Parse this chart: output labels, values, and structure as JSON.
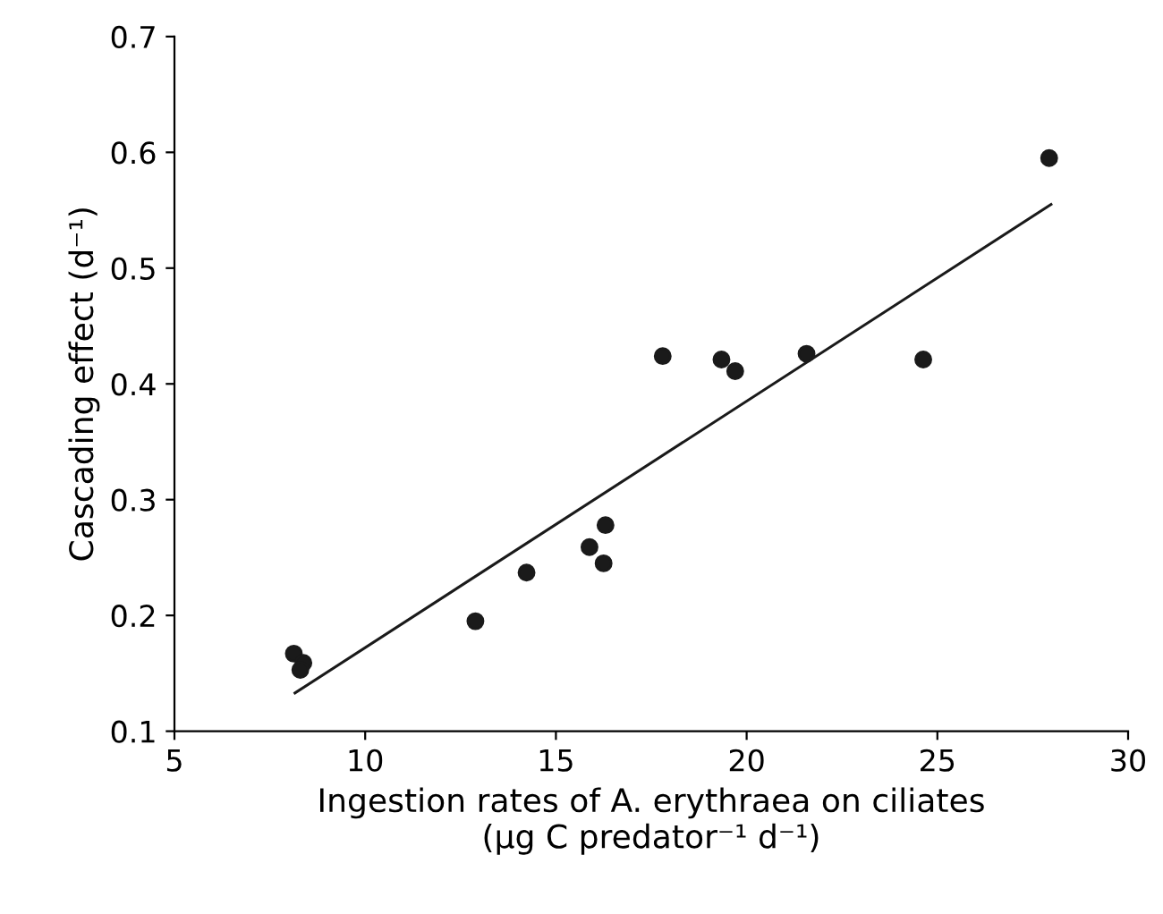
{
  "chart_data": {
    "type": "scatter",
    "xlabel": "Ingestion rates of A. erythraea on ciliates\n(µg C predator⁻¹ d⁻¹)",
    "ylabel": "Cascading effect (d⁻¹)",
    "xlim": [
      5,
      30
    ],
    "ylim": [
      0.1,
      0.7
    ],
    "xticks": [
      5,
      10,
      15,
      20,
      25,
      30
    ],
    "yticks": [
      0.1,
      0.2,
      0.3,
      0.4,
      0.5,
      0.6,
      0.7
    ],
    "grid": false,
    "legend": false,
    "series": [
      {
        "color": "#1a1a1a",
        "marker": "circle",
        "x": [
          8.13,
          8.38,
          8.3,
          12.89,
          14.23,
          15.88,
          16.25,
          16.3,
          17.8,
          19.34,
          19.7,
          21.57,
          24.63,
          27.93
        ],
        "values": [
          0.167,
          0.159,
          0.153,
          0.195,
          0.237,
          0.259,
          0.245,
          0.278,
          0.424,
          0.421,
          0.411,
          0.426,
          0.421,
          0.595
        ]
      },
      {
        "type": "line",
        "color": "#1a1a1a",
        "marker": "none",
        "line_style": "solid",
        "x": [
          8.16,
          27.98
        ],
        "values": [
          0.133,
          0.555
        ]
      }
    ]
  }
}
